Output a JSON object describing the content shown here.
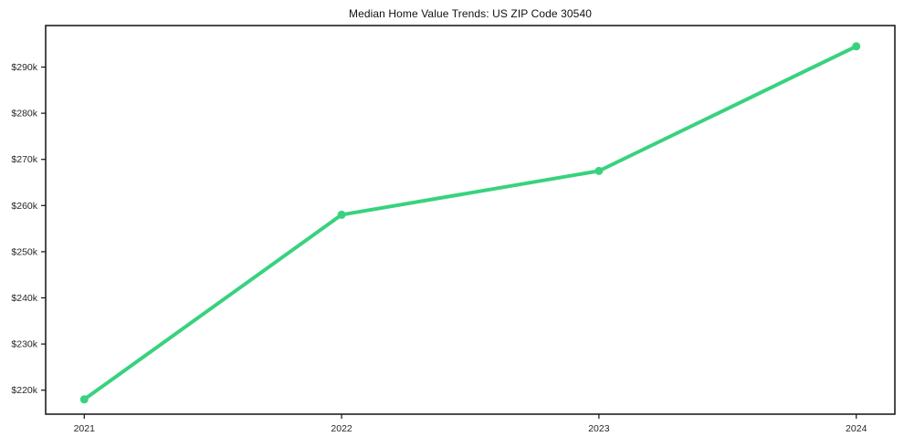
{
  "title": "Median Home Value Trends: US ZIP Code 30540",
  "colors": {
    "background": "#ffffff",
    "axis": "#111111",
    "tick_label": "#262626",
    "title": "#111111",
    "line": "#38d27f"
  },
  "chart_data": {
    "type": "line",
    "title": "Median Home Value Trends: US ZIP Code 30540",
    "x": [
      "2021",
      "2022",
      "2023",
      "2024"
    ],
    "series": [
      {
        "name": "Median Home Value",
        "values": [
          218000,
          258000,
          267500,
          294500
        ]
      }
    ],
    "x_tick_labels": [
      "2021",
      "2022",
      "2023",
      "2024"
    ],
    "y_tick_labels": [
      "$220k",
      "$230k",
      "$240k",
      "$250k",
      "$260k",
      "$270k",
      "$280k",
      "$290k"
    ],
    "y_tick_values": [
      220000,
      230000,
      240000,
      250000,
      260000,
      270000,
      280000,
      290000
    ],
    "xlim": [
      -0.15,
      3.15
    ],
    "ylim": [
      214800,
      299000
    ],
    "grid": false,
    "legend": "none",
    "marker": "circle",
    "line_color": "#38d27f",
    "line_width": 4,
    "marker_radius": 4.5,
    "xlabel": "",
    "ylabel": ""
  }
}
